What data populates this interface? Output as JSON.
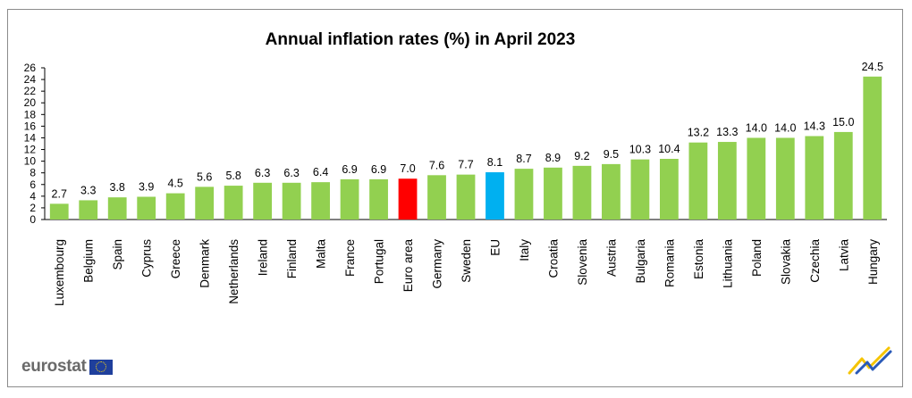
{
  "chart_data": {
    "type": "bar",
    "title": "Annual inflation rates (%) in April 2023",
    "xlabel": "",
    "ylabel": "",
    "ylim": [
      0,
      26
    ],
    "yticks": [
      0,
      2,
      4,
      6,
      8,
      10,
      12,
      14,
      16,
      18,
      20,
      22,
      24,
      26
    ],
    "categories": [
      "Luxembourg",
      "Belgium",
      "Spain",
      "Cyprus",
      "Greece",
      "Denmark",
      "Netherlands",
      "Ireland",
      "Finland",
      "Malta",
      "France",
      "Portugal",
      "Euro area",
      "Germany",
      "Sweden",
      "EU",
      "Italy",
      "Croatia",
      "Slovenia",
      "Austria",
      "Bulgaria",
      "Romania",
      "Estonia",
      "Lithuania",
      "Poland",
      "Slovakia",
      "Czechia",
      "Latvia",
      "Hungary"
    ],
    "values": [
      2.7,
      3.3,
      3.8,
      3.9,
      4.5,
      5.6,
      5.8,
      6.3,
      6.3,
      6.4,
      6.9,
      6.9,
      7.0,
      7.6,
      7.7,
      8.1,
      8.7,
      8.9,
      9.2,
      9.5,
      10.3,
      10.4,
      13.2,
      13.3,
      14.0,
      14.0,
      14.3,
      15.0,
      24.5
    ],
    "value_labels": [
      "2.7",
      "3.3",
      "3.8",
      "3.9",
      "4.5",
      "5.6",
      "5.8",
      "6.3",
      "6.3",
      "6.4",
      "6.9",
      "6.9",
      "7.0",
      "7.6",
      "7.7",
      "8.1",
      "8.7",
      "8.9",
      "9.2",
      "9.5",
      "10.3",
      "10.4",
      "13.2",
      "13.3",
      "14.0",
      "14.0",
      "14.3",
      "15.0",
      "24.5"
    ],
    "grid": false,
    "legend": "none",
    "colors": {
      "default": "#92d050",
      "highlight": {
        "Euro area": "#ff0000",
        "EU": "#00b0f0"
      }
    }
  },
  "branding": {
    "logo_text": "eurostat",
    "flag_icon": "eu-flag-icon",
    "mark_icon": "eurostat-swoosh-icon"
  }
}
